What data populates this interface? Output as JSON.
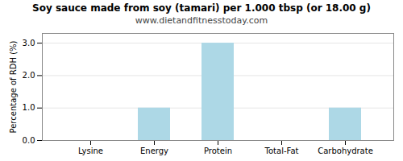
{
  "chart_data": {
    "type": "bar",
    "title": "Soy sauce made from soy (tamari) per 1.000 tbsp (or 18.00 g)",
    "subtitle": "www.dietandfitnesstoday.com",
    "categories": [
      "Lysine",
      "Energy",
      "Protein",
      "Total-Fat",
      "Carbohydrate"
    ],
    "values": [
      0.0,
      1.0,
      3.0,
      0.0,
      1.0
    ],
    "color": "#add8e6",
    "ylabel": "Percentage of RDH (%)",
    "ylim": [
      0,
      3.3
    ],
    "yticks": [
      {
        "value": 0,
        "label": "0.0"
      },
      {
        "value": 1,
        "label": "1.0"
      },
      {
        "value": 2,
        "label": "2.0"
      },
      {
        "value": 3,
        "label": "3.0"
      }
    ],
    "grid": true
  }
}
